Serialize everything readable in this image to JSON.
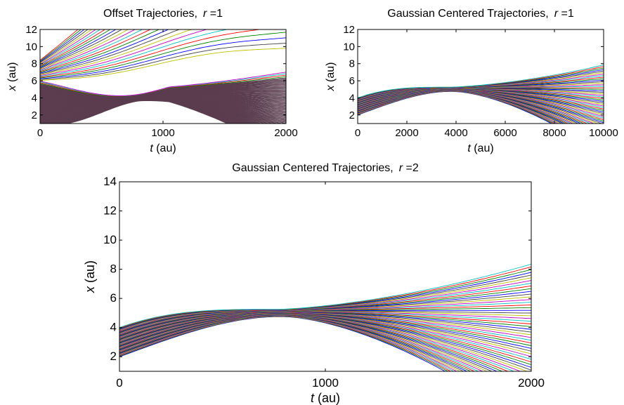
{
  "colors": [
    "#0000ff",
    "#008000",
    "#ff0000",
    "#00bfbf",
    "#bf00bf",
    "#bfbf00",
    "#404040"
  ],
  "chart_data": [
    {
      "id": "offset-r1",
      "type": "line",
      "title_main": "Offset Trajectories,",
      "title_var": "r",
      "title_eq": " =1",
      "xlabel_var": "t",
      "xlabel_unit": " (au)",
      "ylabel_var": "x",
      "ylabel_unit": " (au)",
      "xlim": [
        0,
        2000
      ],
      "ylim": [
        1,
        12
      ],
      "xticks": [
        0,
        1000,
        2000
      ],
      "yticks": [
        2,
        4,
        6,
        8,
        10,
        12
      ],
      "grid": false,
      "legend": "none",
      "family": {
        "count": 80,
        "x0_range": [
          1.0,
          8.4
        ],
        "center": 4.9,
        "spread_scale": 0.001,
        "dip_t": 750,
        "dip_depth": 1.2,
        "converge_until": 800
      }
    },
    {
      "id": "gaussian-r1",
      "type": "line",
      "title_main": "Gaussian Centered Trajectories,",
      "title_var": "r",
      "title_eq": " =1",
      "xlabel_var": "t",
      "xlabel_unit": " (au)",
      "ylabel_var": "x",
      "ylabel_unit": " (au)",
      "xlim": [
        0,
        10000
      ],
      "ylim": [
        1,
        12
      ],
      "xticks": [
        0,
        2000,
        4000,
        6000,
        8000,
        10000
      ],
      "yticks": [
        2,
        4,
        6,
        8,
        10,
        12
      ],
      "grid": false,
      "legend": "none",
      "family": {
        "count": 60,
        "x0_range": [
          2.0,
          4.0
        ],
        "center_start": 3.0,
        "center_peak": 5.0,
        "peak_t": 3800,
        "end_center": 6.5,
        "end_spread": [
          -2.5,
          8.0
        ]
      }
    },
    {
      "id": "gaussian-r2",
      "type": "line",
      "title_main": "Gaussian Centered Trajectories,",
      "title_var": "r",
      "title_eq": " =2",
      "xlabel_var": "t",
      "xlabel_unit": " (au)",
      "ylabel_var": "x",
      "ylabel_unit": " (au)",
      "xlim": [
        0,
        2000
      ],
      "ylim": [
        1,
        14
      ],
      "xticks": [
        0,
        1000,
        2000
      ],
      "yticks": [
        2,
        4,
        6,
        8,
        10,
        12,
        14
      ],
      "grid": false,
      "legend": "none",
      "family": {
        "count": 60,
        "x0_range": [
          2.0,
          4.0
        ],
        "center_start": 3.0,
        "center_peak": 5.0,
        "peak_t": 780,
        "end_center": 6.5,
        "end_spread": [
          -2.5,
          8.5
        ]
      }
    }
  ]
}
